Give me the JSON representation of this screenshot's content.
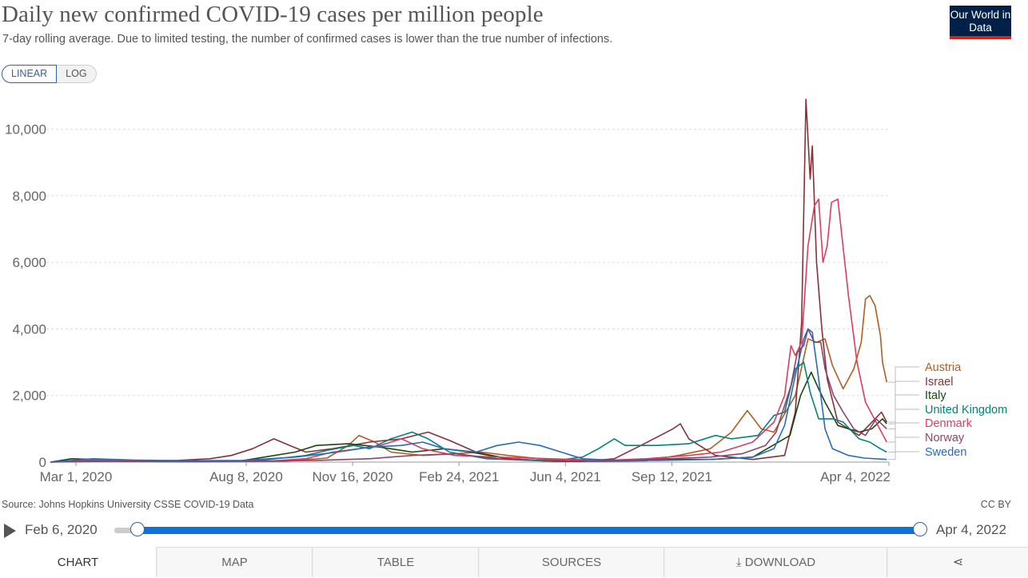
{
  "header": {
    "title": "Daily new confirmed COVID-19 cases per million people",
    "subtitle": "7-day rolling average. Due to limited testing, the number of confirmed cases is lower than the true number of infections.",
    "logo": "Our World in Data"
  },
  "scale_toggle": {
    "linear": "LINEAR",
    "log": "LOG"
  },
  "chart_data": {
    "type": "line",
    "title": "Daily new confirmed COVID-19 cases per million people",
    "xlabel": "",
    "ylabel": "",
    "ylim": [
      0,
      11000
    ],
    "xlim": [
      "2020-02-06",
      "2022-04-04"
    ],
    "yticks": [
      "0",
      "2,000",
      "4,000",
      "6,000",
      "8,000",
      "10,000"
    ],
    "ytick_values": [
      0,
      2000,
      4000,
      6000,
      8000,
      10000
    ],
    "xticks": [
      "Mar 1, 2020",
      "Aug 8, 2020",
      "Nov 16, 2020",
      "Feb 24, 2021",
      "Jun 4, 2021",
      "Sep 12, 2021",
      "Apr 4, 2022"
    ],
    "xtick_days": [
      24,
      184,
      284,
      384,
      484,
      584,
      788
    ],
    "x_note": "days since Feb 6, 2020",
    "series": [
      {
        "name": "Austria",
        "color": "#b05e23",
        "points": [
          [
            0,
            0
          ],
          [
            40,
            80
          ],
          [
            100,
            20
          ],
          [
            160,
            20
          ],
          [
            220,
            30
          ],
          [
            260,
            120
          ],
          [
            280,
            500
          ],
          [
            290,
            800
          ],
          [
            305,
            600
          ],
          [
            320,
            300
          ],
          [
            350,
            200
          ],
          [
            380,
            250
          ],
          [
            405,
            300
          ],
          [
            430,
            200
          ],
          [
            460,
            100
          ],
          [
            490,
            30
          ],
          [
            520,
            20
          ],
          [
            560,
            40
          ],
          [
            590,
            200
          ],
          [
            620,
            400
          ],
          [
            640,
            900
          ],
          [
            655,
            1550
          ],
          [
            668,
            1000
          ],
          [
            680,
            900
          ],
          [
            700,
            2000
          ],
          [
            712,
            3700
          ],
          [
            720,
            3600
          ],
          [
            728,
            3700
          ],
          [
            735,
            2900
          ],
          [
            745,
            2200
          ],
          [
            755,
            2800
          ],
          [
            762,
            3600
          ],
          [
            766,
            4900
          ],
          [
            770,
            5000
          ],
          [
            775,
            4700
          ],
          [
            780,
            3800
          ],
          [
            782,
            3000
          ],
          [
            786,
            2400
          ]
        ]
      },
      {
        "name": "Israel",
        "color": "#883039",
        "points": [
          [
            0,
            0
          ],
          [
            40,
            20
          ],
          [
            80,
            30
          ],
          [
            120,
            50
          ],
          [
            150,
            100
          ],
          [
            170,
            200
          ],
          [
            190,
            400
          ],
          [
            210,
            700
          ],
          [
            225,
            500
          ],
          [
            240,
            300
          ],
          [
            265,
            400
          ],
          [
            300,
            600
          ],
          [
            330,
            700
          ],
          [
            355,
            900
          ],
          [
            375,
            650
          ],
          [
            400,
            300
          ],
          [
            430,
            100
          ],
          [
            470,
            30
          ],
          [
            500,
            20
          ],
          [
            530,
            100
          ],
          [
            555,
            500
          ],
          [
            585,
            1000
          ],
          [
            592,
            1150
          ],
          [
            600,
            700
          ],
          [
            625,
            200
          ],
          [
            660,
            80
          ],
          [
            690,
            200
          ],
          [
            700,
            1500
          ],
          [
            706,
            4200
          ],
          [
            710,
            10900
          ],
          [
            714,
            8500
          ],
          [
            716,
            9500
          ],
          [
            720,
            6000
          ],
          [
            725,
            4000
          ],
          [
            730,
            2500
          ],
          [
            740,
            1200
          ],
          [
            760,
            800
          ],
          [
            775,
            1300
          ],
          [
            781,
            1500
          ],
          [
            786,
            1200
          ]
        ]
      },
      {
        "name": "Italy",
        "color": "#18470f",
        "points": [
          [
            0,
            0
          ],
          [
            20,
            100
          ],
          [
            40,
            80
          ],
          [
            70,
            20
          ],
          [
            140,
            10
          ],
          [
            180,
            40
          ],
          [
            230,
            300
          ],
          [
            250,
            500
          ],
          [
            280,
            550
          ],
          [
            310,
            450
          ],
          [
            340,
            300
          ],
          [
            370,
            400
          ],
          [
            395,
            300
          ],
          [
            430,
            100
          ],
          [
            470,
            30
          ],
          [
            540,
            50
          ],
          [
            580,
            80
          ],
          [
            620,
            80
          ],
          [
            660,
            150
          ],
          [
            695,
            800
          ],
          [
            705,
            2000
          ],
          [
            715,
            2700
          ],
          [
            722,
            2200
          ],
          [
            728,
            1800
          ],
          [
            740,
            1100
          ],
          [
            760,
            900
          ],
          [
            772,
            1000
          ],
          [
            782,
            1300
          ],
          [
            786,
            1150
          ]
        ]
      },
      {
        "name": "United Kingdom",
        "color": "#00847e",
        "points": [
          [
            0,
            0
          ],
          [
            40,
            80
          ],
          [
            70,
            40
          ],
          [
            140,
            10
          ],
          [
            200,
            60
          ],
          [
            240,
            200
          ],
          [
            260,
            350
          ],
          [
            285,
            500
          ],
          [
            300,
            400
          ],
          [
            320,
            700
          ],
          [
            340,
            900
          ],
          [
            355,
            700
          ],
          [
            375,
            300
          ],
          [
            410,
            100
          ],
          [
            470,
            30
          ],
          [
            500,
            150
          ],
          [
            515,
            400
          ],
          [
            530,
            700
          ],
          [
            540,
            500
          ],
          [
            570,
            500
          ],
          [
            600,
            550
          ],
          [
            625,
            800
          ],
          [
            640,
            700
          ],
          [
            665,
            800
          ],
          [
            680,
            1400
          ],
          [
            690,
            1500
          ],
          [
            700,
            2800
          ],
          [
            708,
            3000
          ],
          [
            714,
            2100
          ],
          [
            722,
            1300
          ],
          [
            736,
            1300
          ],
          [
            745,
            1200
          ],
          [
            760,
            700
          ],
          [
            770,
            600
          ],
          [
            780,
            400
          ],
          [
            786,
            300
          ]
        ]
      },
      {
        "name": "Denmark",
        "color": "#dd3d5e",
        "points": [
          [
            0,
            0
          ],
          [
            40,
            50
          ],
          [
            120,
            10
          ],
          [
            200,
            20
          ],
          [
            240,
            100
          ],
          [
            265,
            300
          ],
          [
            290,
            400
          ],
          [
            310,
            500
          ],
          [
            330,
            700
          ],
          [
            350,
            400
          ],
          [
            380,
            200
          ],
          [
            420,
            150
          ],
          [
            470,
            100
          ],
          [
            520,
            50
          ],
          [
            560,
            100
          ],
          [
            600,
            200
          ],
          [
            630,
            300
          ],
          [
            660,
            600
          ],
          [
            680,
            1200
          ],
          [
            690,
            2000
          ],
          [
            696,
            3500
          ],
          [
            700,
            3200
          ],
          [
            706,
            3600
          ],
          [
            712,
            6500
          ],
          [
            718,
            7700
          ],
          [
            722,
            7900
          ],
          [
            726,
            6000
          ],
          [
            730,
            6500
          ],
          [
            734,
            7800
          ],
          [
            740,
            7900
          ],
          [
            750,
            5000
          ],
          [
            758,
            3000
          ],
          [
            766,
            1800
          ],
          [
            776,
            1200
          ],
          [
            786,
            600
          ]
        ]
      },
      {
        "name": "Norway",
        "color": "#8c4569",
        "points": [
          [
            0,
            0
          ],
          [
            40,
            30
          ],
          [
            140,
            10
          ],
          [
            250,
            50
          ],
          [
            300,
            100
          ],
          [
            340,
            200
          ],
          [
            380,
            250
          ],
          [
            420,
            100
          ],
          [
            470,
            50
          ],
          [
            520,
            30
          ],
          [
            580,
            100
          ],
          [
            620,
            150
          ],
          [
            650,
            250
          ],
          [
            672,
            500
          ],
          [
            682,
            900
          ],
          [
            690,
            1700
          ],
          [
            696,
            2300
          ],
          [
            702,
            3300
          ],
          [
            708,
            3500
          ],
          [
            712,
            4000
          ],
          [
            718,
            3600
          ],
          [
            724,
            3600
          ],
          [
            728,
            2800
          ],
          [
            736,
            2000
          ],
          [
            745,
            1500
          ],
          [
            755,
            1000
          ],
          [
            766,
            800
          ],
          [
            776,
            1300
          ],
          [
            786,
            1000
          ]
        ]
      },
      {
        "name": "Sweden",
        "color": "#286bbb",
        "points": [
          [
            0,
            0
          ],
          [
            40,
            100
          ],
          [
            80,
            60
          ],
          [
            130,
            40
          ],
          [
            180,
            50
          ],
          [
            230,
            150
          ],
          [
            270,
            300
          ],
          [
            300,
            450
          ],
          [
            330,
            500
          ],
          [
            350,
            600
          ],
          [
            370,
            400
          ],
          [
            400,
            300
          ],
          [
            420,
            500
          ],
          [
            440,
            600
          ],
          [
            460,
            500
          ],
          [
            480,
            300
          ],
          [
            500,
            100
          ],
          [
            530,
            50
          ],
          [
            570,
            50
          ],
          [
            620,
            80
          ],
          [
            660,
            150
          ],
          [
            680,
            400
          ],
          [
            690,
            1100
          ],
          [
            700,
            2600
          ],
          [
            708,
            3700
          ],
          [
            712,
            4000
          ],
          [
            716,
            3900
          ],
          [
            722,
            2500
          ],
          [
            728,
            1000
          ],
          [
            735,
            400
          ],
          [
            750,
            200
          ],
          [
            765,
            120
          ],
          [
            786,
            80
          ]
        ]
      }
    ],
    "legend": [
      "Austria",
      "Israel",
      "Italy",
      "United Kingdom",
      "Denmark",
      "Norway",
      "Sweden"
    ]
  },
  "footer": {
    "source": "Source: Johns Hopkins University CSSE COVID-19 Data",
    "license": "CC BY"
  },
  "timeline": {
    "start_label": "Feb 6, 2020",
    "end_label": "Apr 4, 2022"
  },
  "tabs": {
    "chart": "CHART",
    "map": "MAP",
    "table": "TABLE",
    "sources": "SOURCES",
    "download": "DOWNLOAD"
  }
}
